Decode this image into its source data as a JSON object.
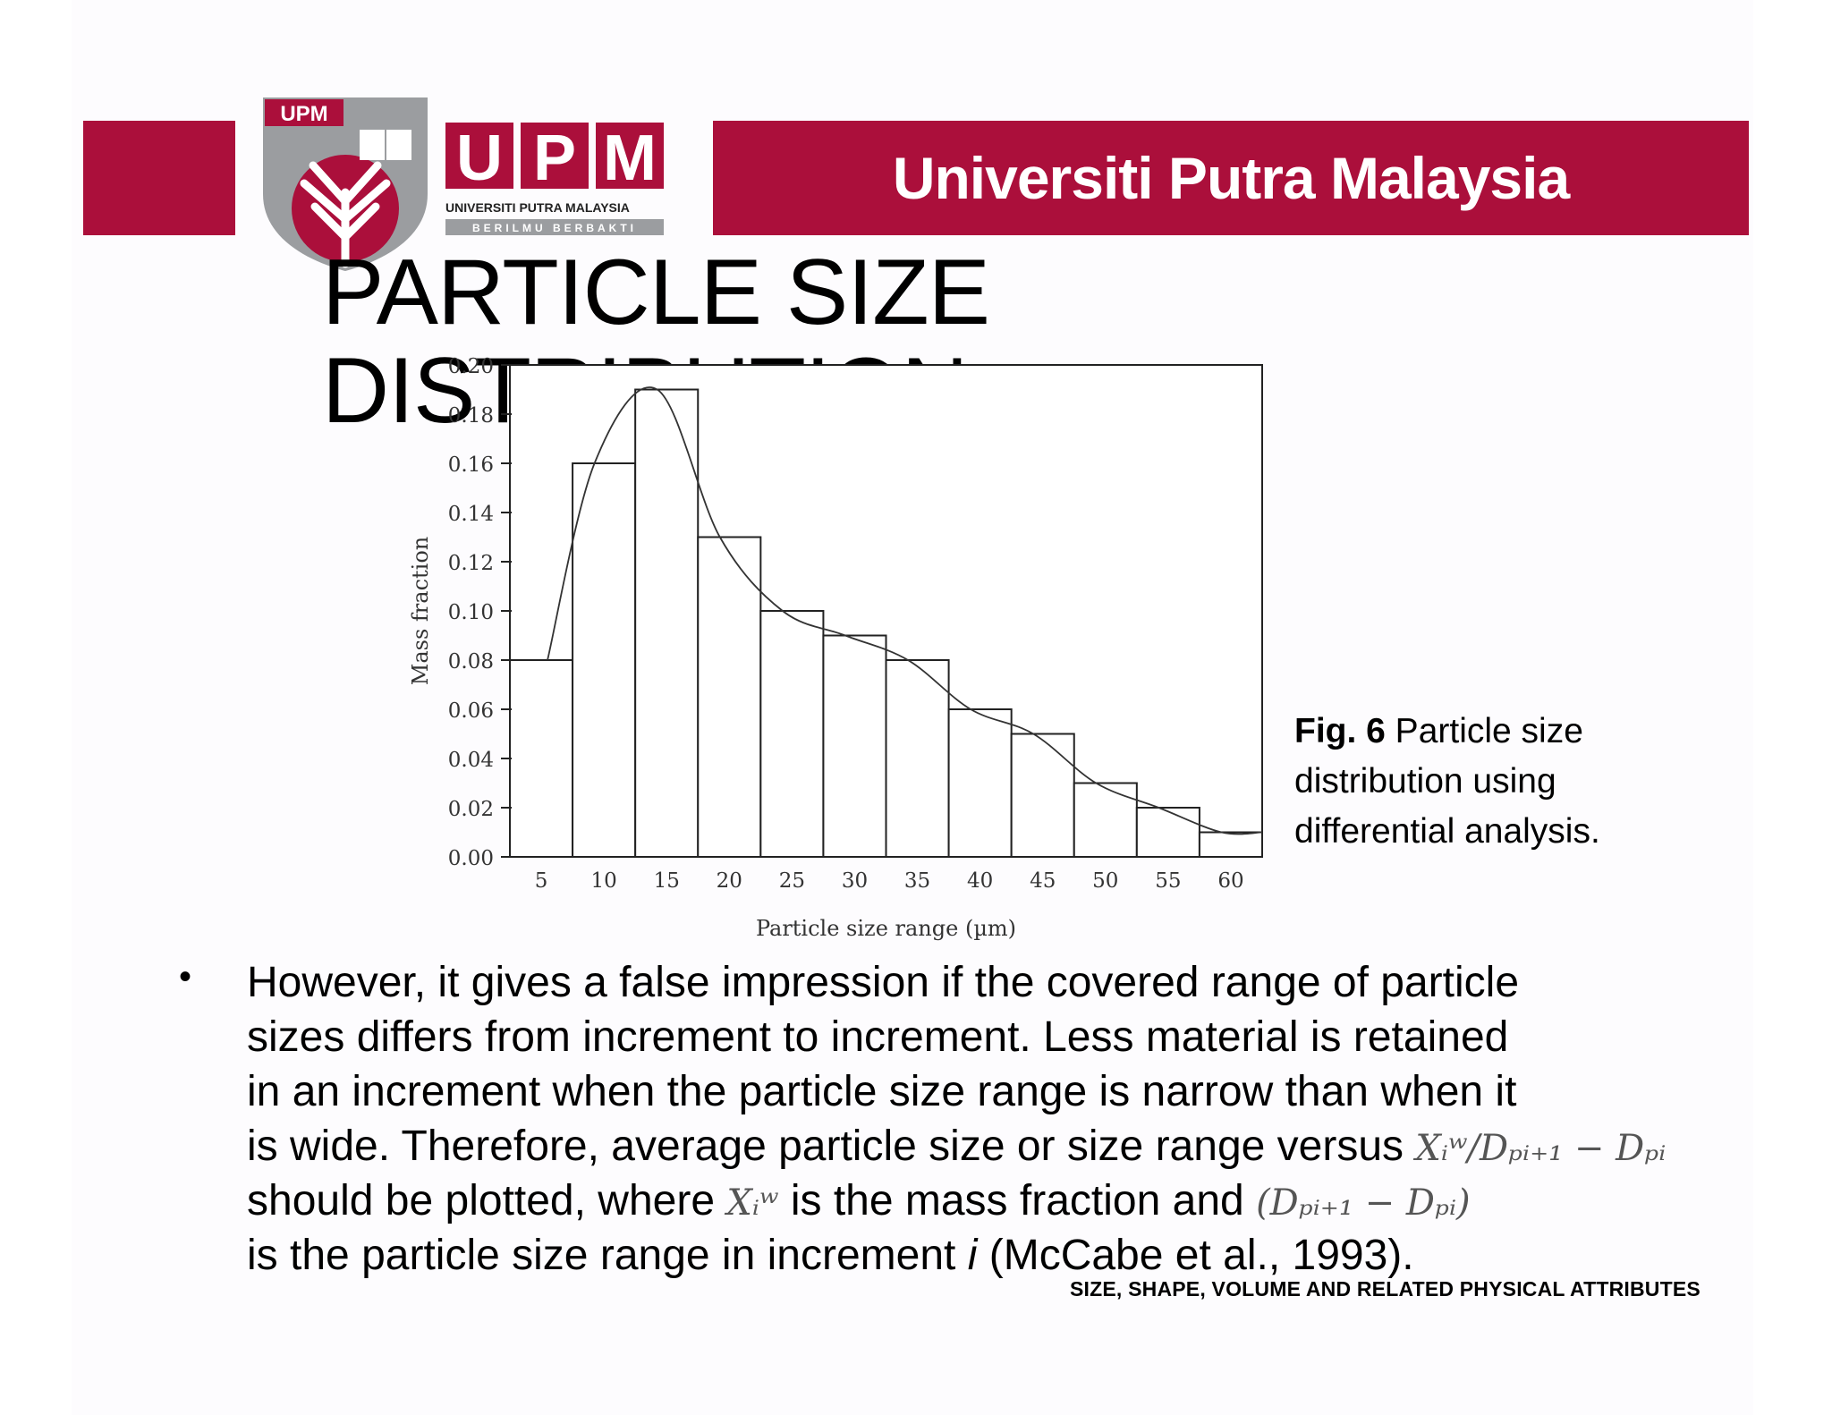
{
  "header": {
    "banner_title": "Universiti Putra Malaysia",
    "logo_letters": [
      "U",
      "P",
      "M"
    ],
    "logo_subtitle": "UNIVERSITI PUTRA MALAYSIA",
    "logo_tagline": "BERILMU BERBAKTI",
    "crest_label": "UPM",
    "brand_color": "#ab0f3b",
    "crest_grey": "#9b9da0"
  },
  "title": "PARTICLE SIZE DISTRIBUTION",
  "chart_data": {
    "type": "bar",
    "categories": [
      "5",
      "10",
      "15",
      "20",
      "25",
      "30",
      "35",
      "40",
      "45",
      "50",
      "55",
      "60"
    ],
    "values": [
      0.08,
      0.16,
      0.19,
      0.13,
      0.1,
      0.09,
      0.08,
      0.06,
      0.05,
      0.03,
      0.02,
      0.01
    ],
    "xlabel": "Particle size range (µm)",
    "ylabel": "Mass fraction",
    "ylim": [
      0,
      0.2
    ],
    "yticks": [
      "0.00",
      "0.02",
      "0.04",
      "0.06",
      "0.08",
      "0.10",
      "0.12",
      "0.14",
      "0.16",
      "0.18",
      "0.20"
    ],
    "overlay_curve": "smooth line through bar tops",
    "grid": false
  },
  "caption": {
    "bold": "Fig. 6",
    "text": " Particle size distribution using differential analysis."
  },
  "bullet": {
    "line1": "However, it gives a false impression if the covered range of particle",
    "line2": "sizes differs from increment to increment. Less material is retained",
    "line3": "in an increment when the particle size range is narrow than when it",
    "line4": "is wide. Therefore, average particle size or size range versus",
    "line5a": "should be plotted, where",
    "line5b": "is the mass fraction and",
    "line6a": "is the particle size range in increment",
    "line6i": "i",
    "line6b": " (McCabe et al., 1993)."
  },
  "math": {
    "xiw_over_range": "Xᵢʷ/Dₚᵢ₊₁ − Dₚᵢ",
    "xiw": "Xᵢʷ",
    "range": "(Dₚᵢ₊₁ − Dₚᵢ)"
  },
  "footer": "SIZE, SHAPE, VOLUME AND RELATED PHYSICAL ATTRIBUTES"
}
